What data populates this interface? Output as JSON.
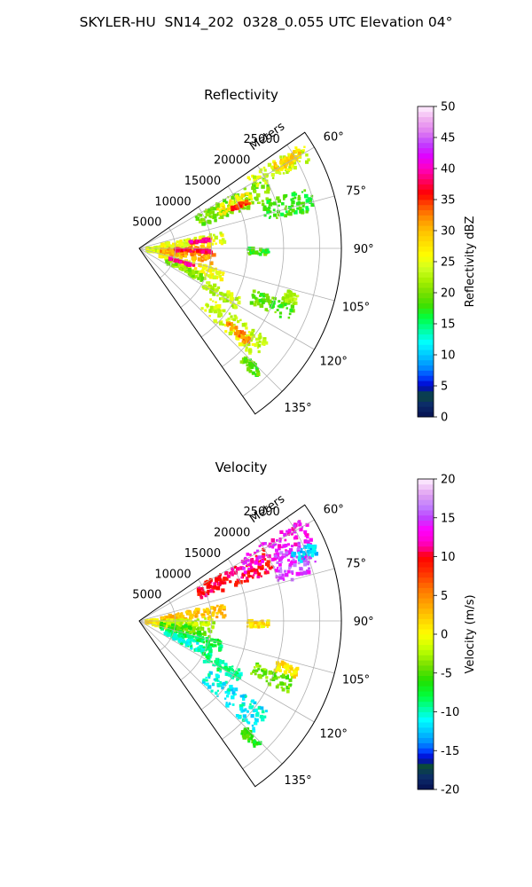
{
  "figure_title": "SKYLER-HU  SN14_202  0328_0.055 UTC Elevation 04°",
  "chart_data": [
    {
      "type": "polar-ppi",
      "title": "Reflectivity",
      "radial_label": "Meters",
      "radial_ticks": [
        "5000",
        "10000",
        "15000",
        "20000",
        "25000"
      ],
      "radial_values": [
        5000,
        10000,
        15000,
        20000,
        25000
      ],
      "rlim": [
        0,
        28000
      ],
      "angular_ticks": [
        "60°",
        "75°",
        "90°",
        "105°",
        "120°",
        "135°"
      ],
      "angular_values": [
        60,
        75,
        90,
        105,
        120,
        135
      ],
      "theta_range_deg": [
        55,
        145
      ],
      "grid": true,
      "colorbar": {
        "label": "Reflectivity dBZ",
        "ticks": [
          "0",
          "5",
          "10",
          "15",
          "20",
          "25",
          "30",
          "35",
          "40",
          "45",
          "50"
        ],
        "range": [
          0,
          50
        ],
        "stops": [
          [
            0,
            "#061050"
          ],
          [
            2,
            "#0c2b6b"
          ],
          [
            3.5,
            "#0b4a3a"
          ],
          [
            5,
            "#0000cc"
          ],
          [
            6.5,
            "#0044ff"
          ],
          [
            8,
            "#008cff"
          ],
          [
            10,
            "#00c8ff"
          ],
          [
            12,
            "#00ffff"
          ],
          [
            14,
            "#00ffa0"
          ],
          [
            16,
            "#00ff40"
          ],
          [
            18,
            "#40e000"
          ],
          [
            20,
            "#78e000"
          ],
          [
            22,
            "#a8f000"
          ],
          [
            24,
            "#d0ff20"
          ],
          [
            26,
            "#ffff00"
          ],
          [
            28,
            "#ffe000"
          ],
          [
            30,
            "#ffc000"
          ],
          [
            32,
            "#ff9000"
          ],
          [
            34,
            "#ff5000"
          ],
          [
            36,
            "#ff0000"
          ],
          [
            38,
            "#ff0060"
          ],
          [
            40,
            "#ff00c0"
          ],
          [
            42,
            "#e000ff"
          ],
          [
            44,
            "#c040ff"
          ],
          [
            46,
            "#e080f0"
          ],
          [
            48,
            "#f0b0f0"
          ],
          [
            50,
            "#fff0ff"
          ]
        ]
      },
      "echo_regions": [
        {
          "theta": [
            86,
            106
          ],
          "r": [
            1000,
            6000
          ],
          "value": 24
        },
        {
          "theta": [
            88,
            102
          ],
          "r": [
            3000,
            10500
          ],
          "value": 31
        },
        {
          "theta": [
            79,
            87
          ],
          "r": [
            3000,
            12000
          ],
          "value": 25
        },
        {
          "theta": [
            104,
            112
          ],
          "r": [
            3000,
            12500
          ],
          "value": 26
        },
        {
          "theta": [
            112,
            118
          ],
          "r": [
            4000,
            10000
          ],
          "value": 21
        },
        {
          "theta": [
            91,
            94
          ],
          "r": [
            5000,
            10000
          ],
          "value": 37
        },
        {
          "theta": [
            82,
            84
          ],
          "r": [
            7000,
            10000
          ],
          "value": 39
        },
        {
          "theta": [
            107,
            109
          ],
          "r": [
            4000,
            8000
          ],
          "value": 38
        },
        {
          "theta": [
            116,
            122
          ],
          "r": [
            10000,
            16000
          ],
          "value": 23
        },
        {
          "theta": [
            125,
            134
          ],
          "r": [
            12000,
            22000
          ],
          "value": 24
        },
        {
          "theta": [
            129,
            132
          ],
          "r": [
            16000,
            20000
          ],
          "value": 32
        },
        {
          "theta": [
            135,
            138
          ],
          "r": [
            21000,
            24000
          ],
          "value": 19
        },
        {
          "theta": [
            60,
            70
          ],
          "r": [
            9000,
            20000
          ],
          "value": 20
        },
        {
          "theta": [
            62,
            68
          ],
          "r": [
            12000,
            17000
          ],
          "value": 27
        },
        {
          "theta": [
            66,
            68
          ],
          "r": [
            14000,
            16500
          ],
          "value": 35
        },
        {
          "theta": [
            57,
            63
          ],
          "r": [
            18000,
            27000
          ],
          "value": 24
        },
        {
          "theta": [
            58,
            61
          ],
          "r": [
            22000,
            26000
          ],
          "value": 29
        },
        {
          "theta": [
            70,
            78
          ],
          "r": [
            18000,
            25000
          ],
          "value": 18
        },
        {
          "theta": [
            90,
            93
          ],
          "r": [
            15000,
            18000
          ],
          "value": 18
        },
        {
          "theta": [
            110,
            116
          ],
          "r": [
            17000,
            23000
          ],
          "value": 19
        },
        {
          "theta": [
            106,
            110
          ],
          "r": [
            21000,
            23000
          ],
          "value": 22
        }
      ]
    },
    {
      "type": "polar-ppi",
      "title": "Velocity",
      "radial_label": "Meters",
      "radial_ticks": [
        "5000",
        "10000",
        "15000",
        "20000",
        "25000"
      ],
      "radial_values": [
        5000,
        10000,
        15000,
        20000,
        25000
      ],
      "rlim": [
        0,
        28000
      ],
      "angular_ticks": [
        "60°",
        "75°",
        "90°",
        "105°",
        "120°",
        "135°"
      ],
      "angular_values": [
        60,
        75,
        90,
        105,
        120,
        135
      ],
      "theta_range_deg": [
        55,
        145
      ],
      "grid": true,
      "colorbar": {
        "label": "Velocity (m/s)",
        "ticks": [
          "-20",
          "-15",
          "-10",
          "-5",
          "0",
          "5",
          "10",
          "15",
          "20"
        ],
        "range": [
          -20,
          20
        ],
        "stops": [
          [
            -20,
            "#061050"
          ],
          [
            -18.5,
            "#0c2b6b"
          ],
          [
            -17,
            "#0b4a3a"
          ],
          [
            -16,
            "#0000cc"
          ],
          [
            -15,
            "#0044ff"
          ],
          [
            -14,
            "#008cff"
          ],
          [
            -12.5,
            "#00c8ff"
          ],
          [
            -11,
            "#00ffff"
          ],
          [
            -9.5,
            "#00ffa0"
          ],
          [
            -8,
            "#00ff40"
          ],
          [
            -6,
            "#20e000"
          ],
          [
            -4,
            "#78e000"
          ],
          [
            -2,
            "#c0ff00"
          ],
          [
            0,
            "#ffff00"
          ],
          [
            2,
            "#ffd000"
          ],
          [
            4,
            "#ffa000"
          ],
          [
            6,
            "#ff7000"
          ],
          [
            8,
            "#ff3000"
          ],
          [
            10,
            "#ff0000"
          ],
          [
            11,
            "#ff0080"
          ],
          [
            12,
            "#ff00d0"
          ],
          [
            13.5,
            "#ff00ff"
          ],
          [
            15,
            "#c040ff"
          ],
          [
            16.5,
            "#c080ff"
          ],
          [
            18,
            "#e0a0f0"
          ],
          [
            20,
            "#fff0ff"
          ]
        ]
      },
      "echo_regions": [
        {
          "theta": [
            86,
            106
          ],
          "r": [
            1000,
            6000
          ],
          "value": 1
        },
        {
          "theta": [
            79,
            88
          ],
          "r": [
            3000,
            12000
          ],
          "value": 3
        },
        {
          "theta": [
            88,
            96
          ],
          "r": [
            3000,
            10500
          ],
          "value": -2
        },
        {
          "theta": [
            96,
            104
          ],
          "r": [
            3000,
            10000
          ],
          "value": -5
        },
        {
          "theta": [
            104,
            110
          ],
          "r": [
            3000,
            12000
          ],
          "value": -8
        },
        {
          "theta": [
            110,
            118
          ],
          "r": [
            4000,
            11000
          ],
          "value": -10
        },
        {
          "theta": [
            116,
            122
          ],
          "r": [
            10000,
            16000
          ],
          "value": -9
        },
        {
          "theta": [
            125,
            134
          ],
          "r": [
            12000,
            22000
          ],
          "value": -11
        },
        {
          "theta": [
            135,
            138
          ],
          "r": [
            21000,
            24000
          ],
          "value": -6
        },
        {
          "theta": [
            60,
            70
          ],
          "r": [
            9000,
            20000
          ],
          "value": 10
        },
        {
          "theta": [
            58,
            66
          ],
          "r": [
            16000,
            27000
          ],
          "value": 13
        },
        {
          "theta": [
            64,
            75
          ],
          "r": [
            20000,
            26000
          ],
          "value": 15
        },
        {
          "theta": [
            66,
            70
          ],
          "r": [
            23000,
            26500
          ],
          "value": -12
        },
        {
          "theta": [
            90,
            93
          ],
          "r": [
            15000,
            18000
          ],
          "value": 1
        },
        {
          "theta": [
            110,
            116
          ],
          "r": [
            17000,
            23000
          ],
          "value": -4
        },
        {
          "theta": [
            106,
            110
          ],
          "r": [
            20000,
            23000
          ],
          "value": 1
        }
      ]
    }
  ]
}
